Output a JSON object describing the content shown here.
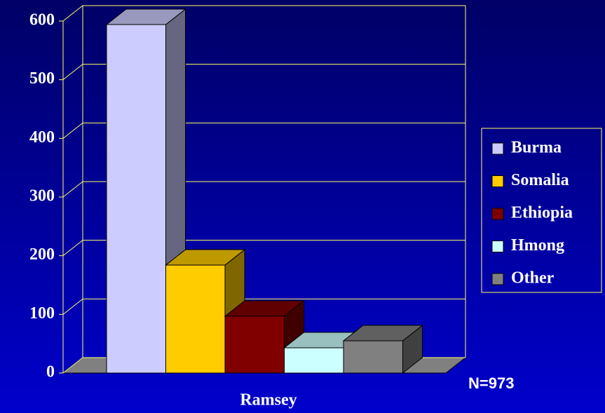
{
  "chart_data": {
    "type": "bar",
    "categories": [
      "Ramsey"
    ],
    "series": [
      {
        "name": "Burma",
        "color": "#ccccff",
        "values": [
          594
        ]
      },
      {
        "name": "Somalia",
        "color": "#ffcc00",
        "values": [
          184
        ]
      },
      {
        "name": "Ethiopia",
        "color": "#800000",
        "values": [
          97
        ]
      },
      {
        "name": "Hmong",
        "color": "#ccffff",
        "values": [
          43
        ]
      },
      {
        "name": "Other",
        "color": "#808080",
        "values": [
          55
        ]
      }
    ],
    "ylim": [
      0,
      600
    ],
    "yticks": [
      0,
      100,
      200,
      300,
      400,
      500,
      600
    ],
    "grid": true,
    "legend": "right",
    "annotation": "N=973"
  }
}
